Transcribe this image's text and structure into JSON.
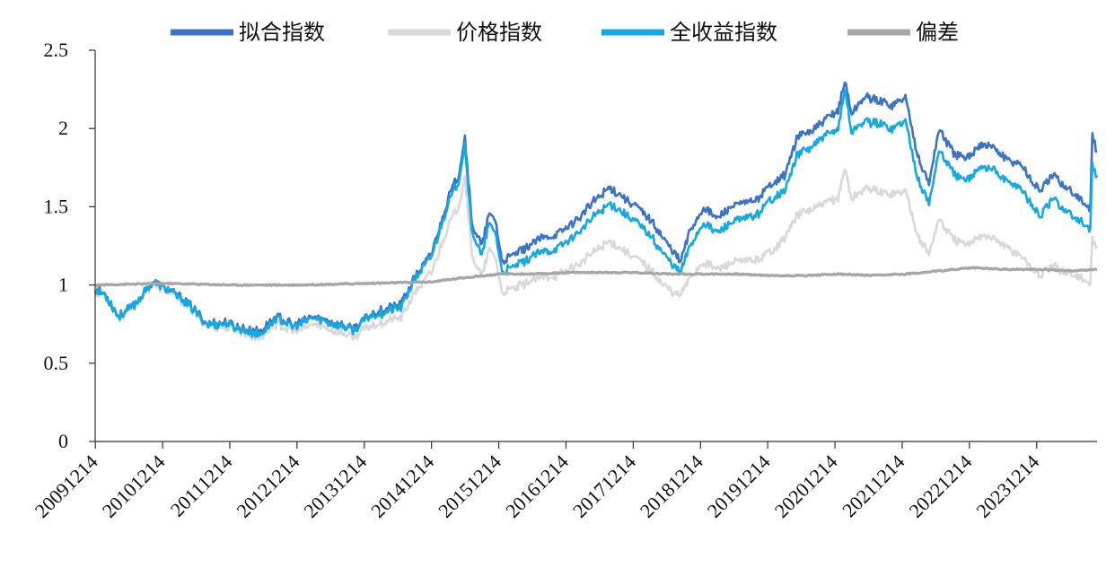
{
  "chart_data": {
    "type": "line",
    "title": "",
    "xlabel": "",
    "ylabel": "",
    "ylim": [
      0,
      2.5
    ],
    "yticks": [
      "0",
      "0.5",
      "1",
      "1.5",
      "2",
      "2.5"
    ],
    "xticks": [
      "20091214",
      "20101214",
      "20111214",
      "20121214",
      "20131214",
      "20141214",
      "20151214",
      "20161214",
      "20171214",
      "20181214",
      "20191214",
      "20201214",
      "20211214",
      "20221214",
      "20231214"
    ],
    "x_range": [
      2009.95,
      2024.85
    ],
    "grid": false,
    "legend_position": "top",
    "series": [
      {
        "name": "拟合指数",
        "color": "#3b73c7",
        "points": [
          [
            2009.95,
            0.97
          ],
          [
            2010.1,
            0.94
          ],
          [
            2010.3,
            0.8
          ],
          [
            2010.55,
            0.88
          ],
          [
            2010.8,
            1.02
          ],
          [
            2011.0,
            0.98
          ],
          [
            2011.3,
            0.9
          ],
          [
            2011.6,
            0.76
          ],
          [
            2011.9,
            0.76
          ],
          [
            2012.15,
            0.72
          ],
          [
            2012.4,
            0.7
          ],
          [
            2012.65,
            0.8
          ],
          [
            2012.9,
            0.74
          ],
          [
            2013.2,
            0.8
          ],
          [
            2013.5,
            0.76
          ],
          [
            2013.8,
            0.72
          ],
          [
            2014.0,
            0.8
          ],
          [
            2014.2,
            0.84
          ],
          [
            2014.5,
            0.88
          ],
          [
            2014.7,
            1.05
          ],
          [
            2014.95,
            1.2
          ],
          [
            2015.2,
            1.55
          ],
          [
            2015.35,
            1.7
          ],
          [
            2015.45,
            1.95
          ],
          [
            2015.55,
            1.4
          ],
          [
            2015.7,
            1.25
          ],
          [
            2015.8,
            1.45
          ],
          [
            2015.9,
            1.42
          ],
          [
            2016.0,
            1.15
          ],
          [
            2016.2,
            1.2
          ],
          [
            2016.4,
            1.25
          ],
          [
            2016.6,
            1.3
          ],
          [
            2016.8,
            1.32
          ],
          [
            2017.0,
            1.38
          ],
          [
            2017.2,
            1.45
          ],
          [
            2017.4,
            1.55
          ],
          [
            2017.6,
            1.62
          ],
          [
            2017.75,
            1.58
          ],
          [
            2018.0,
            1.5
          ],
          [
            2018.2,
            1.42
          ],
          [
            2018.4,
            1.3
          ],
          [
            2018.55,
            1.22
          ],
          [
            2018.65,
            1.15
          ],
          [
            2018.8,
            1.35
          ],
          [
            2019.0,
            1.5
          ],
          [
            2019.2,
            1.42
          ],
          [
            2019.4,
            1.5
          ],
          [
            2019.6,
            1.52
          ],
          [
            2019.8,
            1.55
          ],
          [
            2020.0,
            1.65
          ],
          [
            2020.2,
            1.7
          ],
          [
            2020.4,
            1.95
          ],
          [
            2020.6,
            1.98
          ],
          [
            2020.8,
            2.05
          ],
          [
            2021.0,
            2.12
          ],
          [
            2021.1,
            2.3
          ],
          [
            2021.2,
            2.1
          ],
          [
            2021.4,
            2.2
          ],
          [
            2021.6,
            2.18
          ],
          [
            2021.8,
            2.15
          ],
          [
            2022.0,
            2.2
          ],
          [
            2022.2,
            1.8
          ],
          [
            2022.35,
            1.65
          ],
          [
            2022.5,
            2.0
          ],
          [
            2022.7,
            1.85
          ],
          [
            2022.9,
            1.8
          ],
          [
            2023.1,
            1.9
          ],
          [
            2023.3,
            1.88
          ],
          [
            2023.5,
            1.8
          ],
          [
            2023.7,
            1.78
          ],
          [
            2023.9,
            1.65
          ],
          [
            2024.0,
            1.6
          ],
          [
            2024.2,
            1.7
          ],
          [
            2024.4,
            1.62
          ],
          [
            2024.6,
            1.55
          ],
          [
            2024.75,
            1.48
          ],
          [
            2024.78,
            1.95
          ],
          [
            2024.85,
            1.85
          ]
        ]
      },
      {
        "name": "价格指数",
        "color": "#d9d9d9",
        "points": [
          [
            2009.95,
            0.96
          ],
          [
            2010.1,
            0.93
          ],
          [
            2010.3,
            0.79
          ],
          [
            2010.55,
            0.87
          ],
          [
            2010.8,
            1.01
          ],
          [
            2011.0,
            0.96
          ],
          [
            2011.3,
            0.88
          ],
          [
            2011.6,
            0.74
          ],
          [
            2011.9,
            0.73
          ],
          [
            2012.15,
            0.69
          ],
          [
            2012.4,
            0.66
          ],
          [
            2012.65,
            0.76
          ],
          [
            2012.9,
            0.7
          ],
          [
            2013.2,
            0.75
          ],
          [
            2013.5,
            0.71
          ],
          [
            2013.8,
            0.67
          ],
          [
            2014.0,
            0.73
          ],
          [
            2014.2,
            0.76
          ],
          [
            2014.5,
            0.79
          ],
          [
            2014.7,
            0.95
          ],
          [
            2014.95,
            1.08
          ],
          [
            2015.2,
            1.38
          ],
          [
            2015.35,
            1.5
          ],
          [
            2015.45,
            1.7
          ],
          [
            2015.55,
            1.2
          ],
          [
            2015.7,
            1.05
          ],
          [
            2015.8,
            1.22
          ],
          [
            2015.9,
            1.18
          ],
          [
            2016.0,
            0.95
          ],
          [
            2016.2,
            0.98
          ],
          [
            2016.4,
            1.02
          ],
          [
            2016.6,
            1.05
          ],
          [
            2016.8,
            1.06
          ],
          [
            2017.0,
            1.1
          ],
          [
            2017.2,
            1.15
          ],
          [
            2017.4,
            1.22
          ],
          [
            2017.6,
            1.28
          ],
          [
            2017.75,
            1.24
          ],
          [
            2018.0,
            1.17
          ],
          [
            2018.2,
            1.1
          ],
          [
            2018.4,
            1.0
          ],
          [
            2018.55,
            0.95
          ],
          [
            2018.65,
            0.93
          ],
          [
            2018.8,
            1.05
          ],
          [
            2019.0,
            1.15
          ],
          [
            2019.2,
            1.1
          ],
          [
            2019.4,
            1.14
          ],
          [
            2019.6,
            1.15
          ],
          [
            2019.8,
            1.16
          ],
          [
            2020.0,
            1.22
          ],
          [
            2020.2,
            1.3
          ],
          [
            2020.4,
            1.45
          ],
          [
            2020.6,
            1.48
          ],
          [
            2020.8,
            1.52
          ],
          [
            2021.0,
            1.56
          ],
          [
            2021.1,
            1.75
          ],
          [
            2021.2,
            1.55
          ],
          [
            2021.4,
            1.62
          ],
          [
            2021.6,
            1.6
          ],
          [
            2021.8,
            1.58
          ],
          [
            2022.0,
            1.6
          ],
          [
            2022.2,
            1.3
          ],
          [
            2022.35,
            1.2
          ],
          [
            2022.5,
            1.42
          ],
          [
            2022.7,
            1.3
          ],
          [
            2022.9,
            1.25
          ],
          [
            2023.1,
            1.32
          ],
          [
            2023.3,
            1.3
          ],
          [
            2023.5,
            1.24
          ],
          [
            2023.7,
            1.2
          ],
          [
            2023.9,
            1.1
          ],
          [
            2024.0,
            1.06
          ],
          [
            2024.2,
            1.12
          ],
          [
            2024.4,
            1.08
          ],
          [
            2024.6,
            1.05
          ],
          [
            2024.75,
            1.0
          ],
          [
            2024.78,
            1.28
          ],
          [
            2024.85,
            1.25
          ]
        ]
      },
      {
        "name": "全收益指数",
        "color": "#14a9e2",
        "points": [
          [
            2009.95,
            0.97
          ],
          [
            2010.1,
            0.94
          ],
          [
            2010.3,
            0.8
          ],
          [
            2010.55,
            0.88
          ],
          [
            2010.8,
            1.02
          ],
          [
            2011.0,
            0.98
          ],
          [
            2011.3,
            0.89
          ],
          [
            2011.6,
            0.75
          ],
          [
            2011.9,
            0.75
          ],
          [
            2012.15,
            0.71
          ],
          [
            2012.4,
            0.68
          ],
          [
            2012.65,
            0.79
          ],
          [
            2012.9,
            0.73
          ],
          [
            2013.2,
            0.79
          ],
          [
            2013.5,
            0.75
          ],
          [
            2013.8,
            0.71
          ],
          [
            2014.0,
            0.79
          ],
          [
            2014.2,
            0.82
          ],
          [
            2014.5,
            0.86
          ],
          [
            2014.7,
            1.03
          ],
          [
            2014.95,
            1.18
          ],
          [
            2015.2,
            1.52
          ],
          [
            2015.35,
            1.66
          ],
          [
            2015.45,
            1.9
          ],
          [
            2015.55,
            1.35
          ],
          [
            2015.7,
            1.18
          ],
          [
            2015.8,
            1.38
          ],
          [
            2015.9,
            1.34
          ],
          [
            2016.0,
            1.08
          ],
          [
            2016.2,
            1.12
          ],
          [
            2016.4,
            1.17
          ],
          [
            2016.6,
            1.21
          ],
          [
            2016.8,
            1.23
          ],
          [
            2017.0,
            1.29
          ],
          [
            2017.2,
            1.36
          ],
          [
            2017.4,
            1.45
          ],
          [
            2017.6,
            1.52
          ],
          [
            2017.75,
            1.48
          ],
          [
            2018.0,
            1.4
          ],
          [
            2018.2,
            1.32
          ],
          [
            2018.4,
            1.2
          ],
          [
            2018.55,
            1.12
          ],
          [
            2018.65,
            1.08
          ],
          [
            2018.8,
            1.25
          ],
          [
            2019.0,
            1.4
          ],
          [
            2019.2,
            1.33
          ],
          [
            2019.4,
            1.4
          ],
          [
            2019.6,
            1.42
          ],
          [
            2019.8,
            1.45
          ],
          [
            2020.0,
            1.55
          ],
          [
            2020.2,
            1.6
          ],
          [
            2020.4,
            1.84
          ],
          [
            2020.6,
            1.88
          ],
          [
            2020.8,
            1.95
          ],
          [
            2021.0,
            2.0
          ],
          [
            2021.1,
            2.25
          ],
          [
            2021.2,
            1.98
          ],
          [
            2021.4,
            2.05
          ],
          [
            2021.6,
            2.03
          ],
          [
            2021.8,
            2.0
          ],
          [
            2022.0,
            2.05
          ],
          [
            2022.2,
            1.66
          ],
          [
            2022.35,
            1.52
          ],
          [
            2022.5,
            1.86
          ],
          [
            2022.7,
            1.72
          ],
          [
            2022.9,
            1.66
          ],
          [
            2023.1,
            1.76
          ],
          [
            2023.3,
            1.74
          ],
          [
            2023.5,
            1.66
          ],
          [
            2023.7,
            1.63
          ],
          [
            2023.9,
            1.5
          ],
          [
            2024.0,
            1.44
          ],
          [
            2024.2,
            1.55
          ],
          [
            2024.4,
            1.47
          ],
          [
            2024.6,
            1.41
          ],
          [
            2024.75,
            1.35
          ],
          [
            2024.78,
            1.75
          ],
          [
            2024.85,
            1.7
          ]
        ]
      },
      {
        "name": "偏差",
        "color": "#a6a6a6",
        "points": [
          [
            2009.95,
            1.0
          ],
          [
            2011.0,
            1.01
          ],
          [
            2012.0,
            1.0
          ],
          [
            2013.0,
            1.0
          ],
          [
            2014.0,
            1.01
          ],
          [
            2014.95,
            1.02
          ],
          [
            2015.5,
            1.05
          ],
          [
            2016.0,
            1.07
          ],
          [
            2016.5,
            1.07
          ],
          [
            2017.0,
            1.08
          ],
          [
            2017.5,
            1.08
          ],
          [
            2018.0,
            1.08
          ],
          [
            2018.5,
            1.07
          ],
          [
            2019.0,
            1.07
          ],
          [
            2019.5,
            1.07
          ],
          [
            2020.0,
            1.06
          ],
          [
            2020.5,
            1.06
          ],
          [
            2021.0,
            1.07
          ],
          [
            2021.5,
            1.06
          ],
          [
            2022.0,
            1.07
          ],
          [
            2022.5,
            1.09
          ],
          [
            2023.0,
            1.11
          ],
          [
            2023.5,
            1.1
          ],
          [
            2024.0,
            1.1
          ],
          [
            2024.5,
            1.09
          ],
          [
            2024.85,
            1.1
          ]
        ]
      }
    ]
  }
}
